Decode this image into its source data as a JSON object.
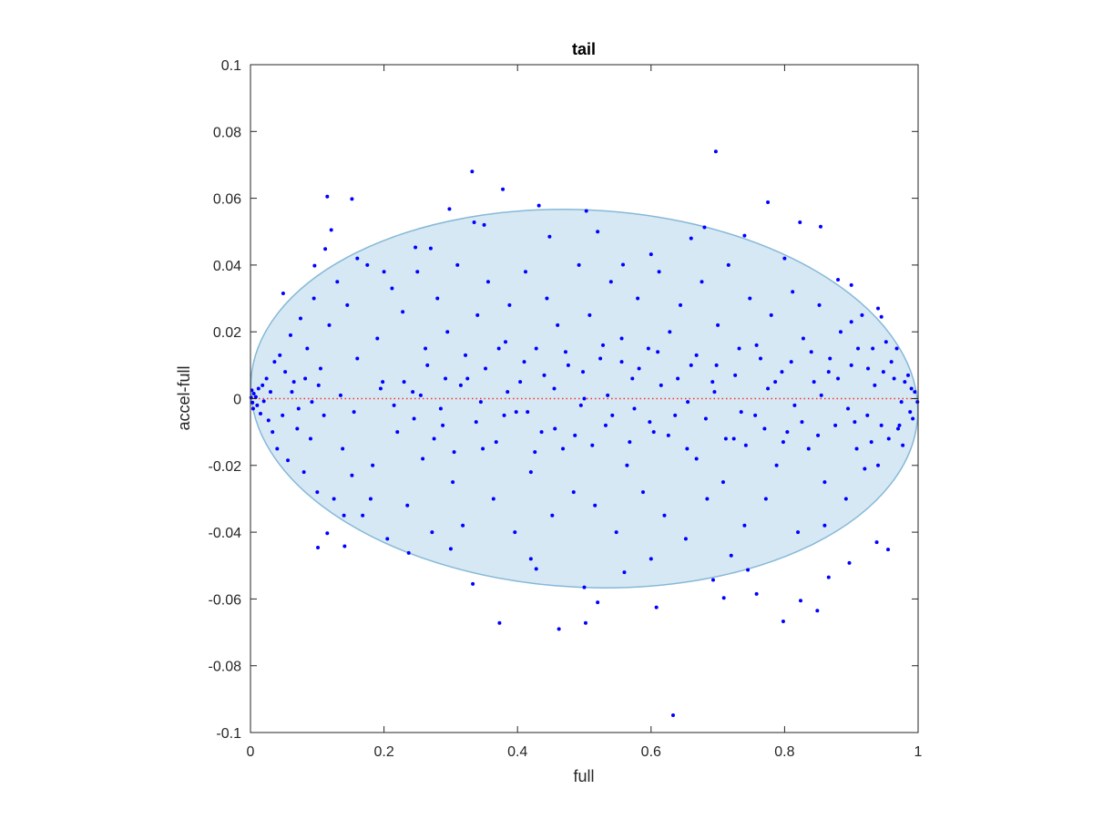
{
  "chart_data": {
    "type": "scatter",
    "title": "tail",
    "xlabel": "full",
    "ylabel": "accel-full",
    "xlim": [
      0,
      1
    ],
    "ylim": [
      -0.1,
      0.1
    ],
    "xticks": [
      0,
      0.2,
      0.4,
      0.6,
      0.8,
      1
    ],
    "xtick_labels": [
      "0",
      "0.2",
      "0.4",
      "0.6",
      "0.8",
      "1"
    ],
    "yticks": [
      0.1,
      0.08,
      0.06,
      0.04,
      0.02,
      0,
      -0.02,
      -0.04,
      -0.06,
      -0.08,
      -0.1
    ],
    "ytick_labels": [
      "0.1",
      "0.08",
      "0.06",
      "0.04",
      "0.02",
      "0",
      "-0.02",
      "-0.04",
      "-0.06",
      "-0.08",
      "-0.1"
    ],
    "grid": false,
    "ellipse": {
      "center": [
        0.5,
        0
      ],
      "x_extent": [
        0,
        1
      ],
      "y_extent": [
        -0.0565,
        0.0565
      ],
      "fill": "#d6e8f3",
      "stroke": "#86b8d8"
    },
    "reference_line": {
      "y": 0,
      "color": "#ff3030",
      "style": "dotted"
    },
    "point_color": "#0000ff",
    "points": [
      [
        0.115,
        0.0605
      ],
      [
        0.152,
        0.0598
      ],
      [
        0.332,
        0.068
      ],
      [
        0.378,
        0.0627
      ],
      [
        0.432,
        0.0578
      ],
      [
        0.298,
        0.0568
      ],
      [
        0.121,
        0.0505
      ],
      [
        0.112,
        0.0448
      ],
      [
        0.096,
        0.0398
      ],
      [
        0.049,
        0.0315
      ],
      [
        0.503,
        0.0562
      ],
      [
        0.697,
        0.074
      ],
      [
        0.775,
        0.0588
      ],
      [
        0.823,
        0.0528
      ],
      [
        0.854,
        0.0515
      ],
      [
        0.74,
        0.0488
      ],
      [
        0.68,
        0.0513
      ],
      [
        0.448,
        0.0485
      ],
      [
        0.335,
        0.0528
      ],
      [
        0.247,
        0.0453
      ],
      [
        0.6,
        0.0432
      ],
      [
        0.558,
        0.0401
      ],
      [
        0.88,
        0.0356
      ],
      [
        0.945,
        0.0245
      ],
      [
        0.968,
        0.015
      ],
      [
        0.101,
        -0.0446
      ],
      [
        0.141,
        -0.0442
      ],
      [
        0.115,
        -0.0403
      ],
      [
        0.333,
        -0.0555
      ],
      [
        0.373,
        -0.0672
      ],
      [
        0.462,
        -0.069
      ],
      [
        0.502,
        -0.0672
      ],
      [
        0.5,
        -0.0565
      ],
      [
        0.52,
        -0.061
      ],
      [
        0.608,
        -0.0625
      ],
      [
        0.633,
        -0.0948
      ],
      [
        0.709,
        -0.0597
      ],
      [
        0.758,
        -0.0585
      ],
      [
        0.798,
        -0.0667
      ],
      [
        0.824,
        -0.0605
      ],
      [
        0.849,
        -0.0635
      ],
      [
        0.897,
        -0.0492
      ],
      [
        0.938,
        -0.043
      ],
      [
        0.955,
        -0.0452
      ],
      [
        0.866,
        -0.0535
      ],
      [
        0.693,
        -0.0543
      ],
      [
        0.745,
        -0.0513
      ],
      [
        0.56,
        -0.052
      ],
      [
        0.428,
        -0.051
      ],
      [
        0.237,
        -0.0462
      ],
      [
        0.001,
        0.0003
      ],
      [
        0.003,
        -0.0012
      ],
      [
        0.005,
        0.0015
      ],
      [
        0.002,
        0.0025
      ],
      [
        0.004,
        -0.003
      ],
      [
        0.008,
        0.0005
      ],
      [
        0.01,
        -0.002
      ],
      [
        0.012,
        0.003
      ],
      [
        0.015,
        -0.0045
      ],
      [
        0.018,
        0.004
      ],
      [
        0.02,
        -0.0008
      ],
      [
        0.024,
        0.006
      ],
      [
        0.027,
        -0.0065
      ],
      [
        0.03,
        0.002
      ],
      [
        0.033,
        -0.01
      ],
      [
        0.036,
        0.011
      ],
      [
        0.04,
        -0.015
      ],
      [
        0.044,
        0.013
      ],
      [
        0.048,
        -0.005
      ],
      [
        0.052,
        0.008
      ],
      [
        0.056,
        -0.0185
      ],
      [
        0.06,
        0.019
      ],
      [
        0.065,
        0.005
      ],
      [
        0.07,
        -0.009
      ],
      [
        0.075,
        0.024
      ],
      [
        0.08,
        -0.022
      ],
      [
        0.085,
        0.015
      ],
      [
        0.09,
        -0.012
      ],
      [
        0.095,
        0.03
      ],
      [
        0.1,
        -0.028
      ],
      [
        0.105,
        0.009
      ],
      [
        0.11,
        -0.005
      ],
      [
        0.118,
        0.022
      ],
      [
        0.125,
        -0.03
      ],
      [
        0.13,
        0.035
      ],
      [
        0.138,
        -0.015
      ],
      [
        0.145,
        0.028
      ],
      [
        0.152,
        -0.023
      ],
      [
        0.16,
        0.012
      ],
      [
        0.168,
        -0.035
      ],
      [
        0.175,
        0.04
      ],
      [
        0.183,
        -0.02
      ],
      [
        0.19,
        0.018
      ],
      [
        0.198,
        0.005
      ],
      [
        0.205,
        -0.042
      ],
      [
        0.212,
        0.033
      ],
      [
        0.22,
        -0.01
      ],
      [
        0.228,
        0.026
      ],
      [
        0.235,
        -0.032
      ],
      [
        0.243,
        0.002
      ],
      [
        0.25,
        0.038
      ],
      [
        0.258,
        -0.018
      ],
      [
        0.265,
        0.01
      ],
      [
        0.272,
        -0.04
      ],
      [
        0.28,
        0.03
      ],
      [
        0.288,
        -0.008
      ],
      [
        0.295,
        0.02
      ],
      [
        0.303,
        -0.025
      ],
      [
        0.31,
        0.04
      ],
      [
        0.318,
        -0.038
      ],
      [
        0.325,
        0.006
      ],
      [
        0.34,
        0.025
      ],
      [
        0.348,
        -0.015
      ],
      [
        0.356,
        0.035
      ],
      [
        0.364,
        -0.03
      ],
      [
        0.372,
        0.015
      ],
      [
        0.38,
        -0.005
      ],
      [
        0.388,
        0.028
      ],
      [
        0.396,
        -0.04
      ],
      [
        0.404,
        0.005
      ],
      [
        0.412,
        0.038
      ],
      [
        0.42,
        -0.022
      ],
      [
        0.428,
        0.015
      ],
      [
        0.436,
        -0.01
      ],
      [
        0.444,
        0.03
      ],
      [
        0.452,
        -0.035
      ],
      [
        0.46,
        0.022
      ],
      [
        0.468,
        -0.015
      ],
      [
        0.476,
        0.01
      ],
      [
        0.484,
        -0.028
      ],
      [
        0.492,
        0.04
      ],
      [
        0.5,
        0.0
      ],
      [
        0.508,
        0.025
      ],
      [
        0.516,
        -0.032
      ],
      [
        0.524,
        0.012
      ],
      [
        0.532,
        -0.008
      ],
      [
        0.54,
        0.035
      ],
      [
        0.548,
        -0.04
      ],
      [
        0.556,
        0.018
      ],
      [
        0.564,
        -0.02
      ],
      [
        0.572,
        0.006
      ],
      [
        0.58,
        0.03
      ],
      [
        0.588,
        -0.028
      ],
      [
        0.596,
        0.015
      ],
      [
        0.604,
        -0.01
      ],
      [
        0.612,
        0.038
      ],
      [
        0.62,
        -0.035
      ],
      [
        0.628,
        0.02
      ],
      [
        0.636,
        -0.005
      ],
      [
        0.644,
        0.028
      ],
      [
        0.652,
        -0.042
      ],
      [
        0.66,
        0.01
      ],
      [
        0.668,
        -0.018
      ],
      [
        0.676,
        0.035
      ],
      [
        0.684,
        -0.03
      ],
      [
        0.692,
        0.005
      ],
      [
        0.7,
        0.022
      ],
      [
        0.708,
        -0.025
      ],
      [
        0.716,
        0.04
      ],
      [
        0.724,
        -0.012
      ],
      [
        0.732,
        0.015
      ],
      [
        0.74,
        -0.038
      ],
      [
        0.748,
        0.03
      ],
      [
        0.756,
        -0.005
      ],
      [
        0.764,
        0.012
      ],
      [
        0.772,
        -0.03
      ],
      [
        0.78,
        0.025
      ],
      [
        0.788,
        -0.02
      ],
      [
        0.796,
        0.008
      ],
      [
        0.804,
        -0.01
      ],
      [
        0.812,
        0.032
      ],
      [
        0.82,
        -0.04
      ],
      [
        0.828,
        0.018
      ],
      [
        0.836,
        -0.015
      ],
      [
        0.844,
        0.005
      ],
      [
        0.852,
        0.028
      ],
      [
        0.86,
        -0.025
      ],
      [
        0.868,
        0.012
      ],
      [
        0.876,
        -0.008
      ],
      [
        0.884,
        0.02
      ],
      [
        0.892,
        -0.03
      ],
      [
        0.9,
        0.01
      ],
      [
        0.908,
        -0.015
      ],
      [
        0.916,
        0.025
      ],
      [
        0.924,
        -0.005
      ],
      [
        0.932,
        0.015
      ],
      [
        0.94,
        -0.02
      ],
      [
        0.948,
        0.008
      ],
      [
        0.956,
        -0.012
      ],
      [
        0.964,
        0.006
      ],
      [
        0.972,
        -0.008
      ],
      [
        0.98,
        0.005
      ],
      [
        0.988,
        -0.004
      ],
      [
        0.995,
        0.002
      ],
      [
        0.999,
        -0.001
      ],
      [
        0.062,
        0.002
      ],
      [
        0.072,
        -0.003
      ],
      [
        0.082,
        0.006
      ],
      [
        0.092,
        -0.001
      ],
      [
        0.102,
        0.004
      ],
      [
        0.135,
        0.001
      ],
      [
        0.155,
        -0.004
      ],
      [
        0.195,
        0.003
      ],
      [
        0.215,
        -0.002
      ],
      [
        0.255,
        0.001
      ],
      [
        0.285,
        -0.003
      ],
      [
        0.315,
        0.004
      ],
      [
        0.345,
        -0.001
      ],
      [
        0.385,
        0.002
      ],
      [
        0.415,
        -0.004
      ],
      [
        0.455,
        0.003
      ],
      [
        0.495,
        -0.002
      ],
      [
        0.535,
        0.001
      ],
      [
        0.575,
        -0.003
      ],
      [
        0.615,
        0.004
      ],
      [
        0.655,
        -0.001
      ],
      [
        0.695,
        0.002
      ],
      [
        0.735,
        -0.004
      ],
      [
        0.775,
        0.003
      ],
      [
        0.815,
        -0.002
      ],
      [
        0.855,
        0.001
      ],
      [
        0.895,
        -0.003
      ],
      [
        0.935,
        0.004
      ],
      [
        0.975,
        -0.001
      ],
      [
        0.99,
        0.003
      ],
      [
        0.88,
        0.006
      ],
      [
        0.905,
        -0.007
      ],
      [
        0.925,
        0.009
      ],
      [
        0.945,
        -0.008
      ],
      [
        0.96,
        0.011
      ],
      [
        0.97,
        -0.009
      ],
      [
        0.985,
        0.007
      ],
      [
        0.992,
        -0.006
      ],
      [
        0.91,
        0.015
      ],
      [
        0.93,
        -0.013
      ],
      [
        0.952,
        0.017
      ],
      [
        0.977,
        -0.014
      ],
      [
        0.9,
        0.023
      ],
      [
        0.92,
        -0.021
      ],
      [
        0.94,
        0.027
      ],
      [
        0.35,
        0.052
      ],
      [
        0.27,
        0.045
      ],
      [
        0.2,
        0.038
      ],
      [
        0.18,
        -0.03
      ],
      [
        0.3,
        -0.045
      ],
      [
        0.42,
        -0.048
      ],
      [
        0.52,
        0.05
      ],
      [
        0.6,
        -0.048
      ],
      [
        0.66,
        0.048
      ],
      [
        0.72,
        -0.047
      ],
      [
        0.8,
        0.042
      ],
      [
        0.86,
        -0.038
      ],
      [
        0.9,
        0.034
      ],
      [
        0.16,
        0.042
      ],
      [
        0.14,
        -0.035
      ],
      [
        0.23,
        0.005
      ],
      [
        0.245,
        -0.006
      ],
      [
        0.262,
        0.015
      ],
      [
        0.275,
        -0.012
      ],
      [
        0.292,
        0.006
      ],
      [
        0.305,
        -0.016
      ],
      [
        0.322,
        0.013
      ],
      [
        0.338,
        -0.007
      ],
      [
        0.352,
        0.009
      ],
      [
        0.368,
        -0.013
      ],
      [
        0.382,
        0.017
      ],
      [
        0.398,
        -0.004
      ],
      [
        0.41,
        0.011
      ],
      [
        0.426,
        -0.016
      ],
      [
        0.44,
        0.007
      ],
      [
        0.456,
        -0.009
      ],
      [
        0.472,
        0.014
      ],
      [
        0.486,
        -0.011
      ],
      [
        0.498,
        0.008
      ],
      [
        0.512,
        -0.014
      ],
      [
        0.528,
        0.016
      ],
      [
        0.542,
        -0.005
      ],
      [
        0.556,
        0.011
      ],
      [
        0.568,
        -0.013
      ],
      [
        0.582,
        0.009
      ],
      [
        0.598,
        -0.007
      ],
      [
        0.61,
        0.014
      ],
      [
        0.626,
        -0.011
      ],
      [
        0.64,
        0.006
      ],
      [
        0.654,
        -0.015
      ],
      [
        0.668,
        0.013
      ],
      [
        0.682,
        -0.006
      ],
      [
        0.698,
        0.01
      ],
      [
        0.712,
        -0.012
      ],
      [
        0.726,
        0.007
      ],
      [
        0.742,
        -0.014
      ],
      [
        0.758,
        0.016
      ],
      [
        0.77,
        -0.009
      ],
      [
        0.786,
        0.005
      ],
      [
        0.798,
        -0.013
      ],
      [
        0.81,
        0.011
      ],
      [
        0.826,
        -0.007
      ],
      [
        0.84,
        0.014
      ],
      [
        0.85,
        -0.011
      ],
      [
        0.866,
        0.008
      ]
    ]
  }
}
